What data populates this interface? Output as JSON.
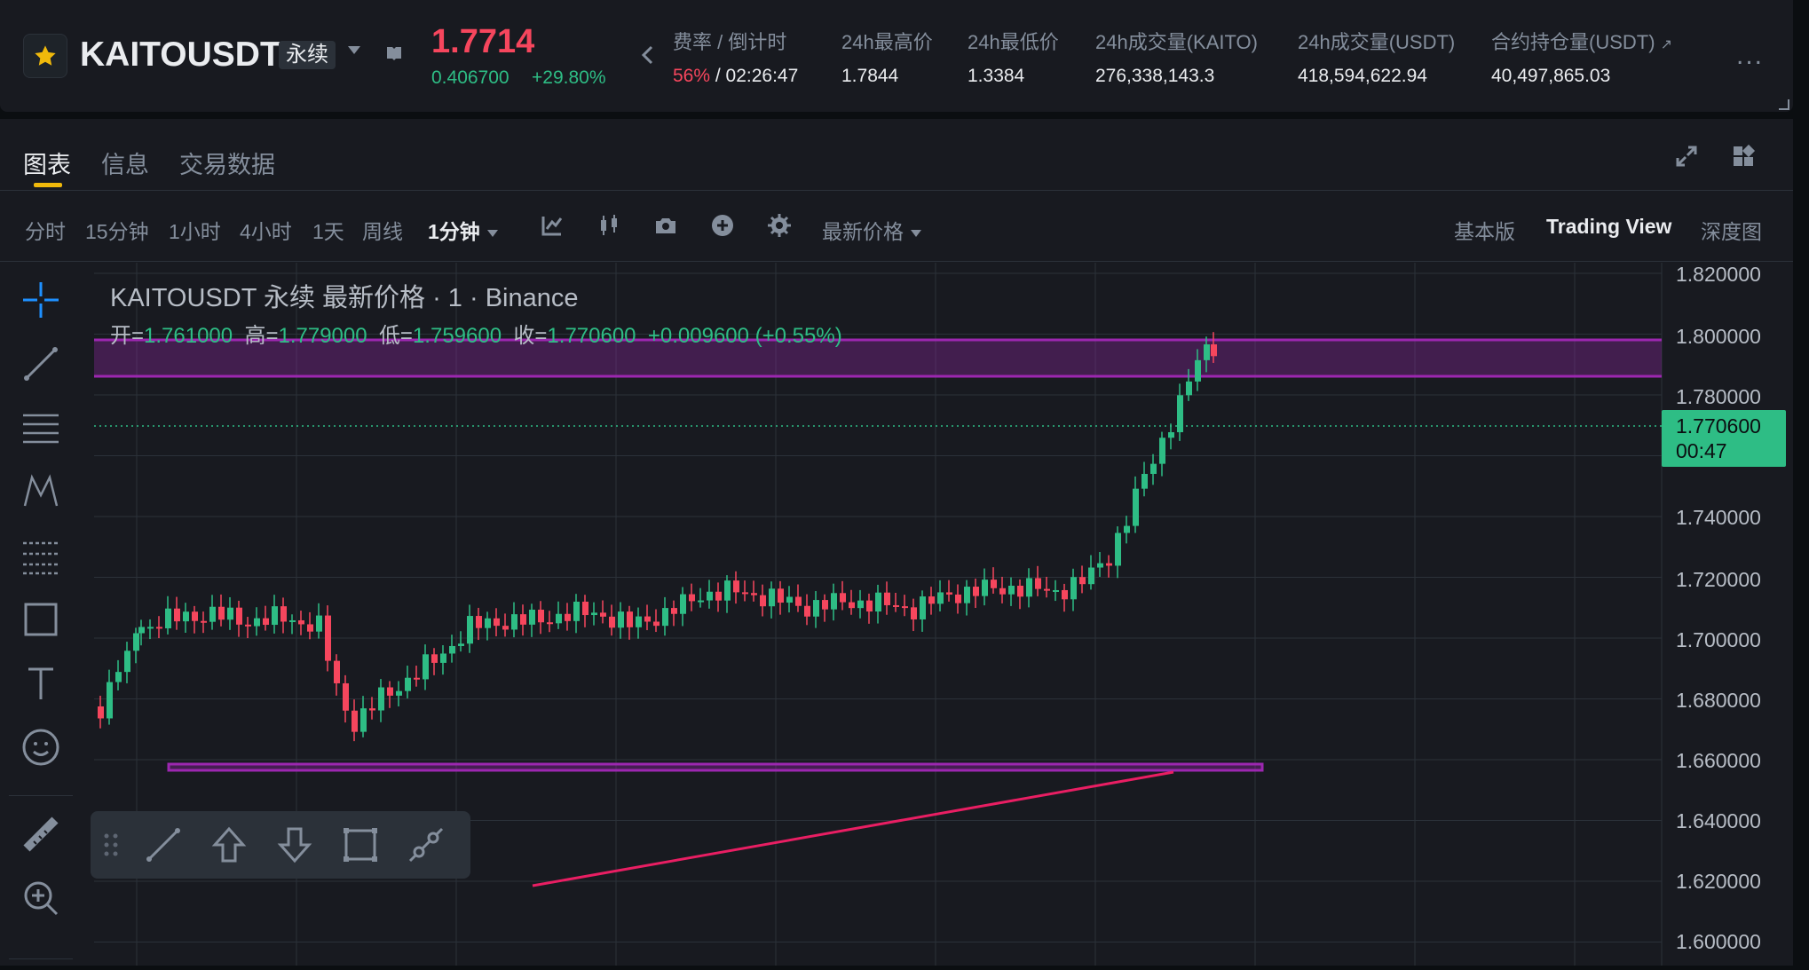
{
  "header": {
    "symbol": "KAITOUSDT",
    "contract_type": "永续",
    "last_price": "1.7714",
    "mark_price": "0.406700",
    "change_pct": "+29.80%",
    "stats": [
      {
        "label": "费率 / 倒计时",
        "value_a": "56%",
        "value_sep": " / ",
        "value_b": "02:26:47"
      },
      {
        "label": "24h最高价",
        "value": "1.7844"
      },
      {
        "label": "24h最低价",
        "value": "1.3384"
      },
      {
        "label": "24h成交量(KAITO)",
        "value": "276,338,143.3"
      },
      {
        "label": "24h成交量(USDT)",
        "value": "418,594,622.94"
      },
      {
        "label": "合约持仓量(USDT)",
        "value": "40,497,865.03"
      }
    ],
    "more": "..."
  },
  "tabs": [
    {
      "label": "图表",
      "active": true
    },
    {
      "label": "信息",
      "active": false
    },
    {
      "label": "交易数据",
      "active": false
    }
  ],
  "toolbar": {
    "intervals": [
      "分时",
      "15分钟",
      "1小时",
      "4小时",
      "1天",
      "周线",
      "1分钟"
    ],
    "price_type": "最新价格",
    "views": [
      "基本版",
      "Trading View",
      "深度图"
    ]
  },
  "chart": {
    "title": "KAITOUSDT 永续 最新价格 · 1 · Binance",
    "ohlc": {
      "open_label": "开=",
      "open": "1.761000",
      "high_label": "高=",
      "high": "1.779000",
      "low_label": "低=",
      "low": "1.759600",
      "close_label": "收=",
      "close": "1.770600",
      "change": "+0.009600 (+0.55%)"
    },
    "current_price": "1.770600",
    "countdown": "00:47",
    "y_axis": [
      "1.820000",
      "1.800000",
      "1.780000",
      "1.740000",
      "1.720000",
      "1.700000",
      "1.680000",
      "1.660000",
      "1.640000",
      "1.620000",
      "1.600000"
    ],
    "colors": {
      "up": "#2ebd85",
      "down": "#f6465d",
      "zone": "#9c27b0",
      "trend": "#e91e63"
    }
  }
}
